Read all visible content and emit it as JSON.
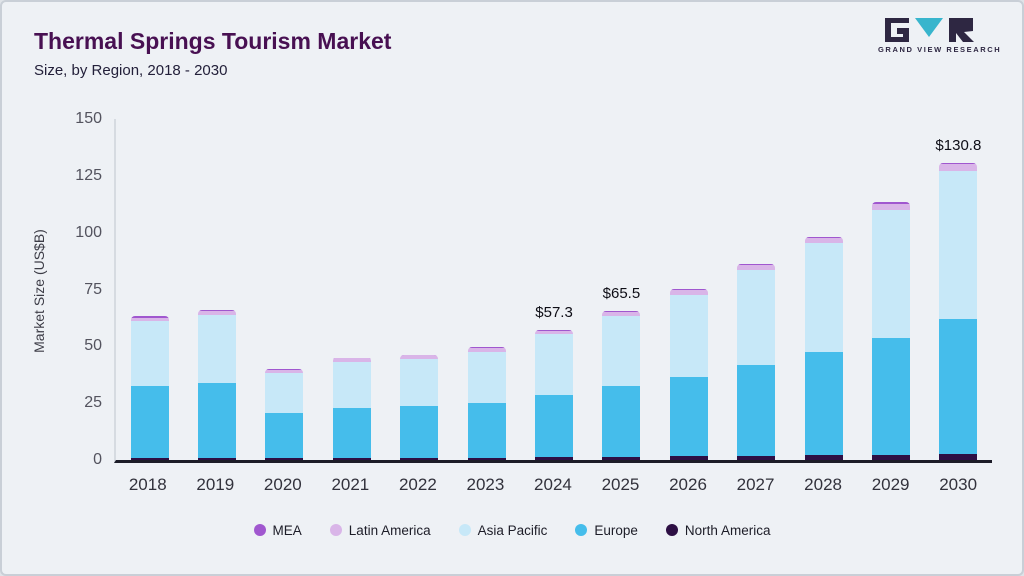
{
  "header": {
    "title": "Thermal Springs Tourism Market",
    "subtitle": "Size, by Region, 2018 - 2030",
    "logo_text": "GRAND VIEW RESEARCH"
  },
  "brand": {
    "logo_dark": "#2e2742",
    "logo_teal": "#38b5cd",
    "title_color": "#481052"
  },
  "chart_data": {
    "type": "bar",
    "stacked": true,
    "title": "Thermal Springs Tourism Market",
    "subtitle": "Size, by Region, 2018 - 2030",
    "xlabel": "",
    "ylabel": "Market Size (US$B)",
    "ylim": [
      0,
      150
    ],
    "yticks": [
      0,
      25,
      50,
      75,
      100,
      125,
      150
    ],
    "grid": false,
    "legend_position": "bottom",
    "categories": [
      "2018",
      "2019",
      "2020",
      "2021",
      "2022",
      "2023",
      "2024",
      "2025",
      "2026",
      "2027",
      "2028",
      "2029",
      "2030"
    ],
    "series": [
      {
        "name": "North America",
        "color": "#2d0f44",
        "values": [
          1.0,
          1.0,
          0.8,
          0.9,
          1.0,
          1.1,
          1.3,
          1.5,
          1.6,
          1.8,
          2.0,
          2.2,
          2.5
        ]
      },
      {
        "name": "Europe",
        "color": "#45bdeb",
        "values": [
          31.5,
          33.0,
          20.0,
          22.0,
          22.6,
          24.0,
          27.5,
          31.0,
          35.0,
          40.0,
          45.5,
          51.5,
          59.5
        ]
      },
      {
        "name": "Asia Pacific",
        "color": "#c7e8f8",
        "values": [
          28.5,
          29.8,
          17.7,
          20.4,
          21.0,
          22.6,
          26.5,
          30.8,
          36.0,
          41.7,
          47.8,
          56.3,
          65.3
        ]
      },
      {
        "name": "Latin America",
        "color": "#d9b5e8",
        "values": [
          1.7,
          1.8,
          1.2,
          1.4,
          1.4,
          1.5,
          1.6,
          1.8,
          2.0,
          2.2,
          2.4,
          2.6,
          2.8
        ]
      },
      {
        "name": "MEA",
        "color": "#a057cf",
        "values": [
          0.5,
          0.5,
          0.3,
          0.4,
          0.4,
          0.4,
          0.4,
          0.4,
          0.5,
          0.5,
          0.6,
          0.7,
          0.7
        ]
      }
    ],
    "totals_labeled": {
      "2024": 57.3,
      "2025": 65.5,
      "2030": 130.8
    },
    "bar_labels": {
      "2024": "$57.3",
      "2025": "$65.5",
      "2030": "$130.8"
    },
    "legend_order": [
      "MEA",
      "Latin America",
      "Asia Pacific",
      "Europe",
      "North America"
    ]
  }
}
